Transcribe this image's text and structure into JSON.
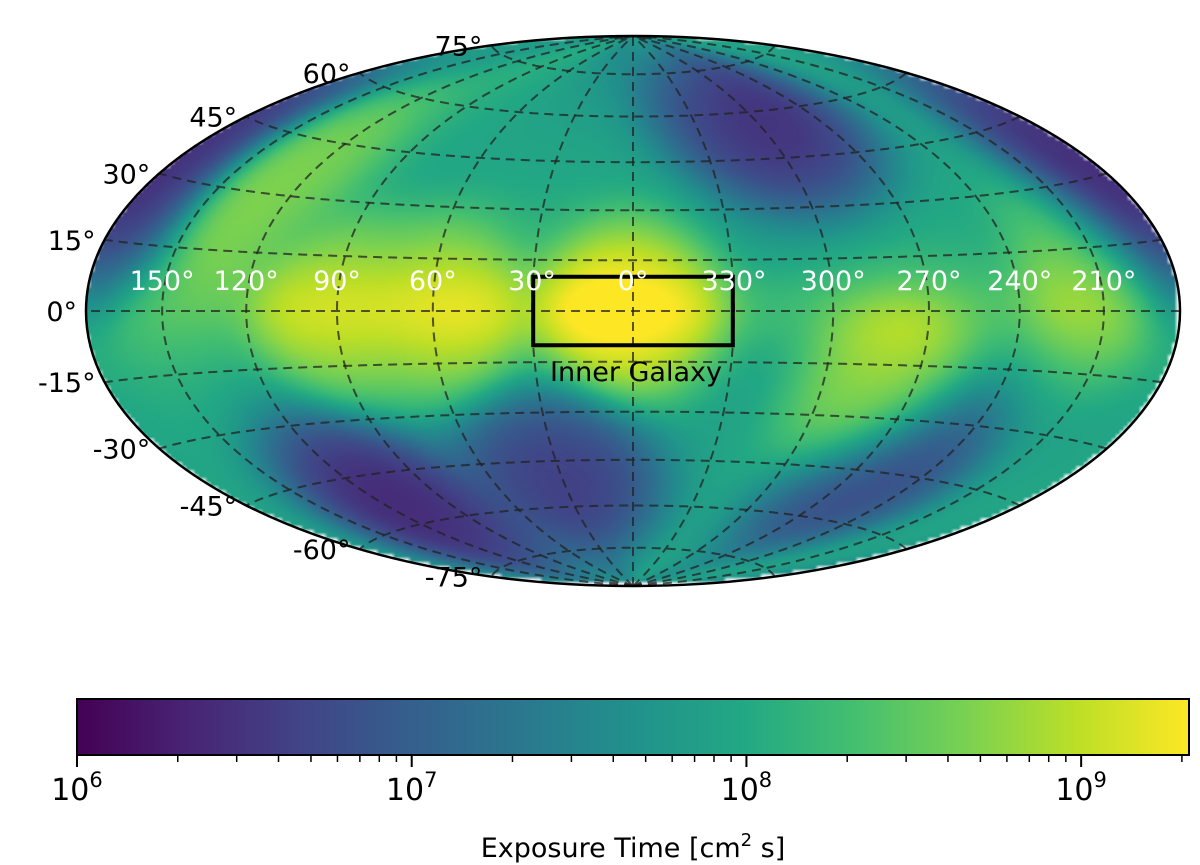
{
  "chart_data": {
    "type": "heatmap",
    "projection": "Hammer-Aitoff all-sky (Galactic coordinates)",
    "colormap": "viridis",
    "colorbar": {
      "label_main": "Exposure Time [cm",
      "label_sup": "2",
      "label_tail": " s]",
      "scale": "log",
      "range": [
        1000000,
        2100000000
      ],
      "major_ticks": [
        {
          "value": 1000000,
          "base": "10",
          "exp": "6"
        },
        {
          "value": 10000000,
          "base": "10",
          "exp": "7"
        },
        {
          "value": 100000000,
          "base": "10",
          "exp": "8"
        },
        {
          "value": 1000000000,
          "base": "10",
          "exp": "9"
        }
      ]
    },
    "longitude_labels": [
      {
        "lon": 150,
        "text": "150°"
      },
      {
        "lon": 120,
        "text": "120°"
      },
      {
        "lon": 90,
        "text": "90°"
      },
      {
        "lon": 60,
        "text": "60°"
      },
      {
        "lon": 30,
        "text": "30°"
      },
      {
        "lon": 0,
        "text": "0°"
      },
      {
        "lon": -30,
        "text": "330°"
      },
      {
        "lon": -60,
        "text": "300°"
      },
      {
        "lon": -90,
        "text": "270°"
      },
      {
        "lon": -120,
        "text": "240°"
      },
      {
        "lon": -150,
        "text": "210°"
      }
    ],
    "latitude_labels": [
      {
        "lat": 75,
        "text": "75°"
      },
      {
        "lat": 60,
        "text": "60°"
      },
      {
        "lat": 45,
        "text": "45°"
      },
      {
        "lat": 30,
        "text": "30°"
      },
      {
        "lat": 15,
        "text": "15°"
      },
      {
        "lat": 0,
        "text": "0°"
      },
      {
        "lat": -15,
        "text": "-15°"
      },
      {
        "lat": -30,
        "text": "-30°"
      },
      {
        "lat": -45,
        "text": "-45°"
      },
      {
        "lat": -60,
        "text": "-60°"
      },
      {
        "lat": -75,
        "text": "-75°"
      }
    ],
    "grid": true,
    "region": {
      "name": "Inner Galaxy",
      "lon_range": [
        -30,
        30
      ],
      "lat_range": [
        -10,
        10
      ]
    },
    "approx_features": [
      {
        "lon": 0,
        "lat": 0,
        "value": 2000000000
      },
      {
        "lon": 90,
        "lat": 0,
        "value": 1000000000
      },
      {
        "lon": 60,
        "lat": 0,
        "value": 900000000
      },
      {
        "lon": -150,
        "lat": 10,
        "value": 600000000
      },
      {
        "lon": -80,
        "lat": -25,
        "value": 700000000
      },
      {
        "lon": 130,
        "lat": 35,
        "value": 600000000
      },
      {
        "lon": -60,
        "lat": 55,
        "value": 2000000
      },
      {
        "lon": -170,
        "lat": 25,
        "value": 1500000
      },
      {
        "lon": 110,
        "lat": -55,
        "value": 1500000
      },
      {
        "lon": 175,
        "lat": 35,
        "value": 2500000
      },
      {
        "lon": 30,
        "lat": -50,
        "value": 3000000
      },
      {
        "lon": -100,
        "lat": -45,
        "value": 4000000
      }
    ]
  }
}
